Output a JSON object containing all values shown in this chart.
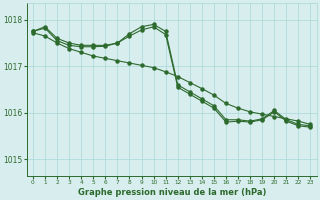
{
  "line1_x": [
    0,
    1,
    2,
    3,
    4,
    5,
    6,
    7,
    8,
    9,
    10,
    11,
    12,
    13,
    14,
    15,
    16,
    17,
    18,
    19,
    20,
    21,
    22,
    23
  ],
  "line1_y": [
    1017.75,
    1017.85,
    1017.6,
    1017.5,
    1017.45,
    1017.45,
    1017.45,
    1017.5,
    1017.7,
    1017.85,
    1017.9,
    1017.75,
    1016.6,
    1016.45,
    1016.3,
    1016.15,
    1015.85,
    1015.85,
    1015.82,
    1015.87,
    1016.05,
    1015.85,
    1015.75,
    1015.72
  ],
  "line2_x": [
    0,
    1,
    2,
    3,
    4,
    5,
    6,
    7,
    8,
    9,
    10,
    11,
    12,
    13,
    14,
    15,
    16,
    17,
    18,
    19,
    20,
    21,
    22,
    23
  ],
  "line2_y": [
    1017.75,
    1017.82,
    1017.55,
    1017.45,
    1017.42,
    1017.42,
    1017.43,
    1017.5,
    1017.65,
    1017.78,
    1017.85,
    1017.68,
    1016.55,
    1016.4,
    1016.25,
    1016.1,
    1015.8,
    1015.82,
    1015.8,
    1015.85,
    1016.02,
    1015.82,
    1015.72,
    1015.69
  ],
  "line3_x": [
    0,
    1,
    2,
    3,
    4,
    5,
    6,
    7,
    8,
    9,
    10,
    11,
    12,
    13,
    14,
    15,
    16,
    17,
    18,
    19,
    20,
    21,
    22,
    23
  ],
  "line3_y": [
    1017.72,
    1017.65,
    1017.5,
    1017.38,
    1017.3,
    1017.22,
    1017.17,
    1017.12,
    1017.07,
    1017.02,
    1016.97,
    1016.88,
    1016.78,
    1016.65,
    1016.52,
    1016.38,
    1016.2,
    1016.1,
    1016.02,
    1015.97,
    1015.92,
    1015.87,
    1015.82,
    1015.75
  ],
  "line_color": "#2d6a2d",
  "bg_color": "#d8eeee",
  "grid_color": "#a8d8d8",
  "xlabel": "Graphe pression niveau de la mer (hPa)",
  "xlabel_color": "#2d6a2d",
  "tick_color": "#2d6a2d",
  "yticks": [
    1015,
    1016,
    1017,
    1018
  ],
  "xticks": [
    0,
    1,
    2,
    3,
    4,
    5,
    6,
    7,
    8,
    9,
    10,
    11,
    12,
    13,
    14,
    15,
    16,
    17,
    18,
    19,
    20,
    21,
    22,
    23
  ],
  "ylim": [
    1014.65,
    1018.35
  ],
  "xlim": [
    -0.5,
    23.5
  ]
}
